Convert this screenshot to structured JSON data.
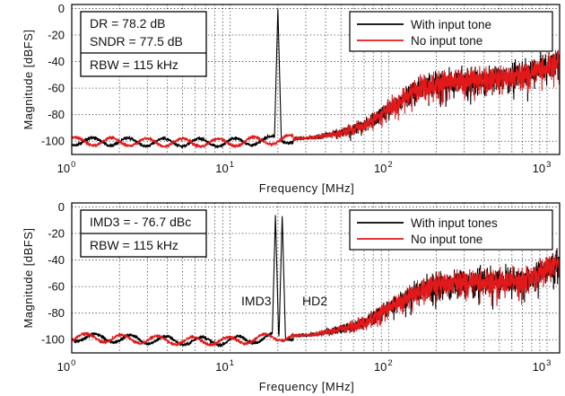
{
  "chart_data": [
    {
      "type": "line",
      "xlabel": "Frequency [MHz]",
      "ylabel": "Magnitude [dBFS]",
      "xscale": "log",
      "xlim": [
        1,
        1200
      ],
      "ylim": [
        -110,
        3
      ],
      "grid": true,
      "x_ticks": [
        {
          "base": "10",
          "exp": "0"
        },
        {
          "base": "10",
          "exp": "1"
        },
        {
          "base": "10",
          "exp": "2"
        },
        {
          "base": "10",
          "exp": "3"
        }
      ],
      "y_ticks": [
        "0",
        "-20",
        "-40",
        "-60",
        "-80",
        "-100"
      ],
      "annotation_box": [
        "DR = 78.2 dB",
        "SNDR = 77.5 dB",
        "RBW = 115 kHz"
      ],
      "legend": {
        "position": "top-right"
      },
      "series": [
        {
          "name": "With input tone",
          "color": "#000000",
          "tones": [
            {
              "freq_mhz": 20,
              "level_dbfs": 0
            }
          ]
        },
        {
          "name": "No input tone",
          "color": "#e0191b"
        }
      ],
      "noise_floor_dbfs": [
        [
          1,
          -100
        ],
        [
          5,
          -101
        ],
        [
          10,
          -101
        ],
        [
          20,
          -99
        ],
        [
          35,
          -97
        ],
        [
          50,
          -94
        ],
        [
          70,
          -88
        ],
        [
          100,
          -76
        ],
        [
          150,
          -60
        ],
        [
          200,
          -56
        ],
        [
          300,
          -54
        ],
        [
          500,
          -52
        ],
        [
          700,
          -50
        ],
        [
          1000,
          -44
        ],
        [
          1200,
          -38
        ]
      ]
    },
    {
      "type": "line",
      "xlabel": "Frequency [MHz]",
      "ylabel": "Magnitude [dBFS]",
      "xscale": "log",
      "xlim": [
        1,
        1200
      ],
      "ylim": [
        -110,
        3
      ],
      "grid": true,
      "x_ticks": [
        {
          "base": "10",
          "exp": "0"
        },
        {
          "base": "10",
          "exp": "1"
        },
        {
          "base": "10",
          "exp": "2"
        },
        {
          "base": "10",
          "exp": "3"
        }
      ],
      "y_ticks": [
        "0",
        "-20",
        "-40",
        "-60",
        "-80",
        "-100"
      ],
      "annotation_box": [
        "IMD3 = - 76.7 dBc",
        "RBW = 115 kHz"
      ],
      "labels": [
        {
          "text": "IMD3",
          "freq_mhz": 18
        },
        {
          "text": "HD2",
          "freq_mhz": 40
        }
      ],
      "legend": {
        "position": "top-right"
      },
      "series": [
        {
          "name": "With input tones",
          "color": "#000000",
          "tones": [
            {
              "freq_mhz": 19.3,
              "level_dbfs": -6
            },
            {
              "freq_mhz": 21.3,
              "level_dbfs": -6
            }
          ]
        },
        {
          "name": "No input tone",
          "color": "#e0191b"
        }
      ],
      "noise_floor_dbfs": [
        [
          1,
          -98
        ],
        [
          5,
          -101
        ],
        [
          10,
          -101
        ],
        [
          20,
          -98
        ],
        [
          35,
          -96
        ],
        [
          50,
          -92
        ],
        [
          70,
          -87
        ],
        [
          100,
          -76
        ],
        [
          150,
          -64
        ],
        [
          200,
          -58
        ],
        [
          300,
          -56
        ],
        [
          500,
          -56
        ],
        [
          700,
          -55
        ],
        [
          1000,
          -46
        ],
        [
          1200,
          -40
        ]
      ]
    }
  ]
}
